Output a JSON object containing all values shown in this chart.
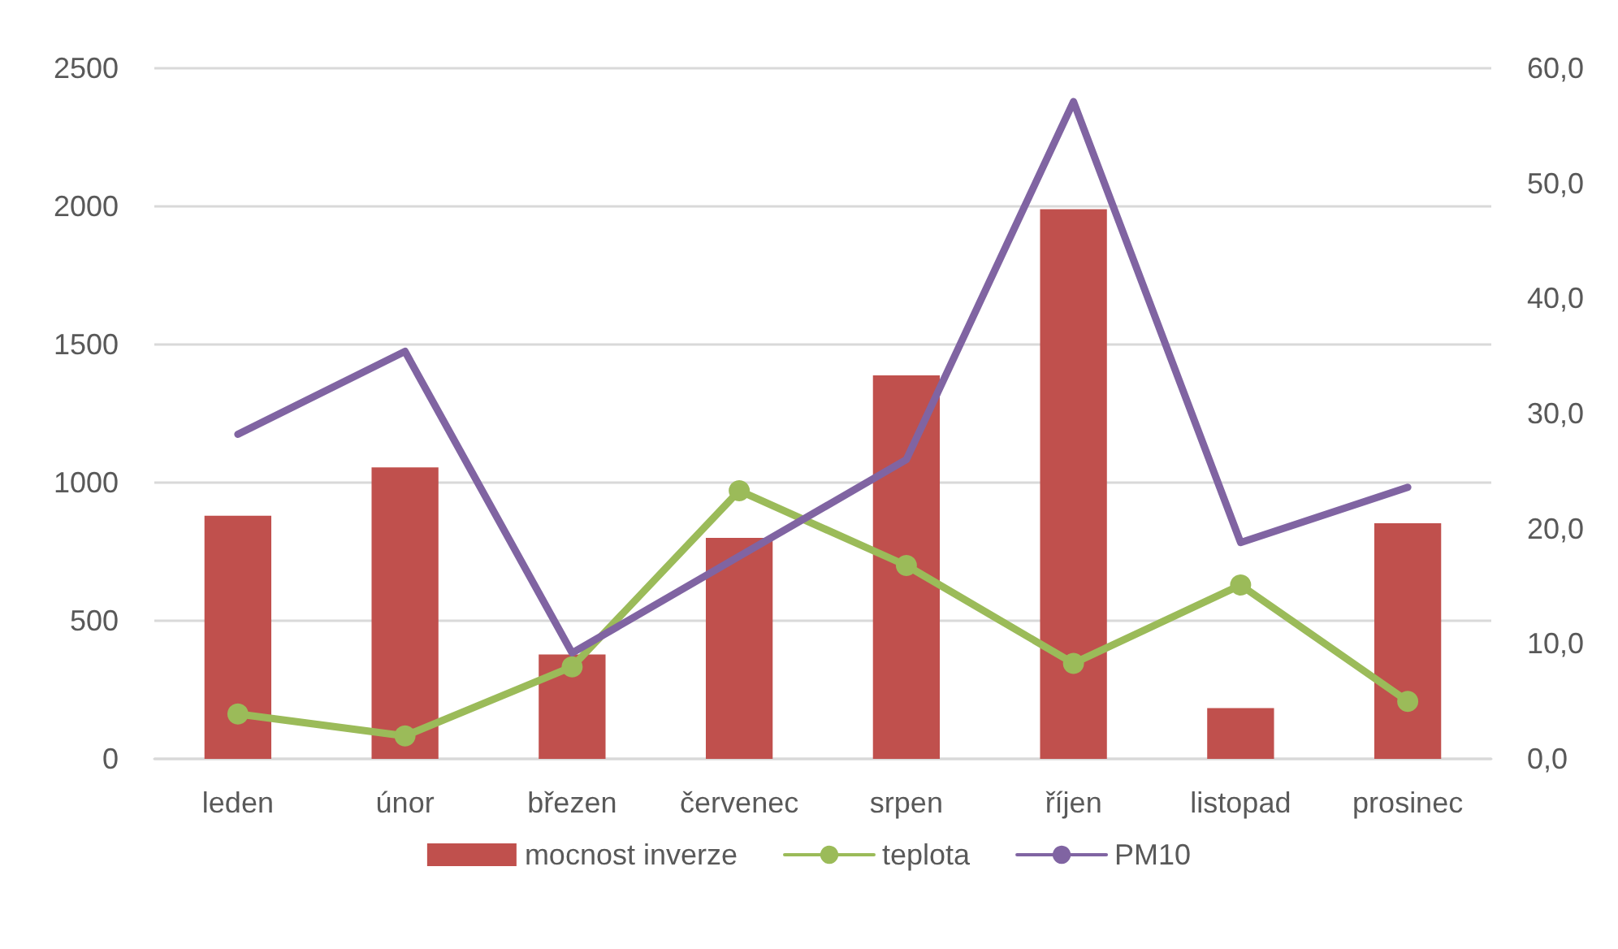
{
  "chart_data": {
    "type": "bar",
    "categories": [
      "leden",
      "únor",
      "březen",
      "červenec",
      "srpen",
      "říjen",
      "listopad",
      "prosinec"
    ],
    "series": [
      {
        "name": "mocnost inverze",
        "color": "#c0504d",
        "values": [
          880,
          1055,
          378,
          800,
          1388,
          1990,
          184,
          853
        ]
      },
      {
        "name": "teplota",
        "type": "line",
        "axis": "y2",
        "color": "#9bbb59",
        "marker": "circle",
        "values": [
          3.9,
          2.0,
          8.0,
          23.3,
          16.8,
          8.3,
          15.1,
          5.0
        ]
      },
      {
        "name": "PM10",
        "type": "line",
        "axis": "y2",
        "color": "#8064a2",
        "marker": "none",
        "values": [
          28.2,
          35.4,
          9.2,
          17.6,
          26.0,
          57.1,
          18.8,
          23.6
        ]
      }
    ],
    "ylim": [
      0,
      2500
    ],
    "yticks": [
      0,
      500,
      1000,
      1500,
      2000,
      2500
    ],
    "y2lim": [
      0,
      60
    ],
    "y2ticks": [
      {
        "value": 0,
        "label": "0,0"
      },
      {
        "value": 10,
        "label": "10,0"
      },
      {
        "value": 20,
        "label": "20,0"
      },
      {
        "value": 30,
        "label": "30,0"
      },
      {
        "value": 40,
        "label": "40,0"
      },
      {
        "value": 50,
        "label": "50,0"
      },
      {
        "value": 60,
        "label": "60,0"
      }
    ],
    "grid": "y",
    "legend": "bottom",
    "line_style": "solid"
  }
}
